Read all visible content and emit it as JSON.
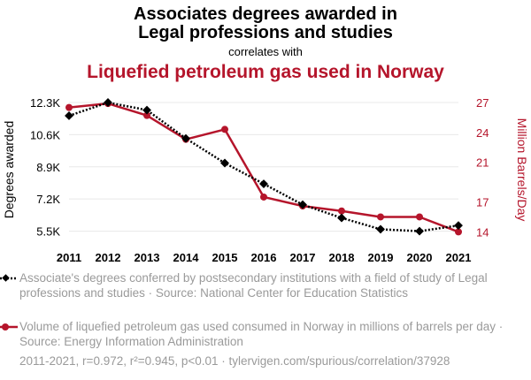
{
  "chart_data": {
    "type": "line",
    "title_line1": "Associates degrees awarded in",
    "title_line2": "Legal professions and studies",
    "correlates_text": "correlates with",
    "subtitle": "Liquefied petroleum gas used in Norway",
    "x": [
      "2011",
      "2012",
      "2013",
      "2014",
      "2015",
      "2016",
      "2017",
      "2018",
      "2019",
      "2020",
      "2021"
    ],
    "left_axis": {
      "label": "Degrees awarded",
      "min": 5.2,
      "max": 12.3,
      "ticks": [
        5.5,
        7.2,
        8.9,
        10.6,
        12.3
      ],
      "tick_labels": [
        "5.5K",
        "7.2K",
        "8.9K",
        "10.6K",
        "12.3K"
      ]
    },
    "right_axis": {
      "label": "Million Barrels/Day",
      "min": 13.5,
      "max": 27,
      "ticks": [
        14,
        17,
        21,
        24,
        27
      ],
      "tick_labels": [
        "14",
        "17",
        "21",
        "24",
        "27"
      ]
    },
    "series": [
      {
        "name": "Associate's degrees conferred by postsecondary institutions with a field of study of Legal professions and studies · Source: National Center for Education Statistics",
        "axis": "left",
        "color": "#000000",
        "style": "dotted",
        "marker": "diamond",
        "values": [
          11.6,
          12.3,
          11.9,
          10.4,
          9.1,
          8.0,
          6.9,
          6.2,
          5.6,
          5.5,
          5.8
        ]
      },
      {
        "name": "Volume of liquefied petroleum gas used consumed in Norway in millions of barrels per day · Source: Energy Information Administration",
        "axis": "right",
        "color": "#b5152b",
        "style": "solid",
        "marker": "circle",
        "values": [
          26.5,
          26.9,
          25.7,
          23.3,
          24.3,
          17.5,
          16.6,
          16.1,
          15.5,
          15.5,
          14.0
        ]
      }
    ],
    "footer": "2011-2021, r=0.972, r²=0.945, p<0.01 · tylervigen.com/spurious/correlation/37928"
  },
  "colors": {
    "accent": "#b5152b",
    "series_left": "#000000",
    "muted_text": "#9a9a9a",
    "grid": "#e8e8e8"
  }
}
